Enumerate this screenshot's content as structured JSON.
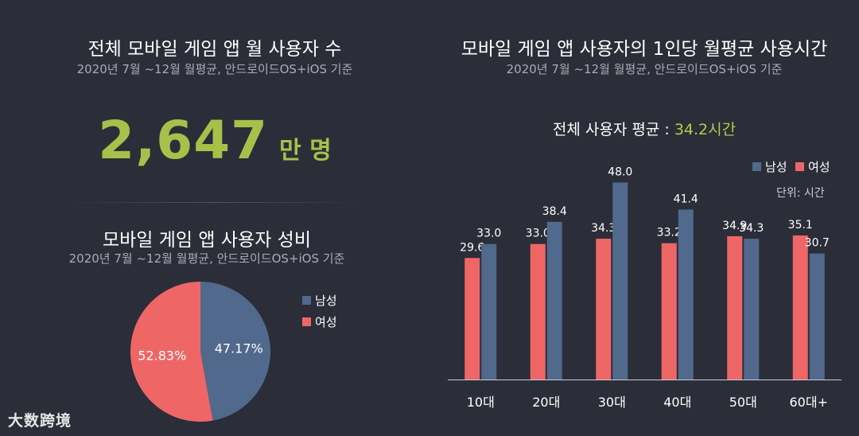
{
  "left_panel": {
    "total_title": "전체 모바일 게임 앱  월 사용자 수",
    "total_subtitle": "2020년 7월 ~12월  월평균, 안드로이드OS+iOS 기준",
    "total_value": "2,647",
    "total_unit": "만 명",
    "gender_title": "모바일 게임 앱 사용자 성비",
    "gender_subtitle": "2020년 7월 ~12월  월평균, 안드로이드OS+iOS 기준"
  },
  "right_panel": {
    "title": "모바일 게임 앱 사용자의 1인당 월평균 사용시간",
    "subtitle": "2020년 7월 ~12월  월평균, 안드로이드OS+iOS 기준",
    "avg_label": "전체 사용자 평균 : ",
    "avg_value": "34.2시간",
    "unit_note": "단위: 시간"
  },
  "watermark": "大数跨境",
  "colors": {
    "male": "#50698c",
    "female": "#ef6667",
    "accent": "#a6c14a",
    "background": "#2b2e38"
  },
  "chart_data": [
    {
      "type": "pie",
      "labels": [
        "남성",
        "여성"
      ],
      "values": [
        47.17,
        52.83
      ],
      "value_labels": [
        "47.17%",
        "52.83%"
      ],
      "legend_placement": "right"
    },
    {
      "type": "bar",
      "categories": [
        "10대",
        "20대",
        "30대",
        "40대",
        "50대",
        "60대+"
      ],
      "series": [
        {
          "name": "여성",
          "values": [
            29.6,
            33.0,
            34.3,
            33.2,
            34.9,
            35.1
          ],
          "labels": [
            "29.6",
            "33.0",
            "34.3",
            "33.2",
            "34.9",
            "35.1"
          ]
        },
        {
          "name": "남성",
          "values": [
            33.0,
            38.4,
            48.0,
            41.4,
            34.3,
            30.7
          ],
          "labels": [
            "33.0",
            "38.4",
            "48.0",
            "41.4",
            "34.3",
            "30.7"
          ]
        }
      ],
      "legend": [
        "남성",
        "여성"
      ],
      "legend_placement": "top-right",
      "ylim": [
        0,
        50
      ],
      "grid": false
    }
  ]
}
